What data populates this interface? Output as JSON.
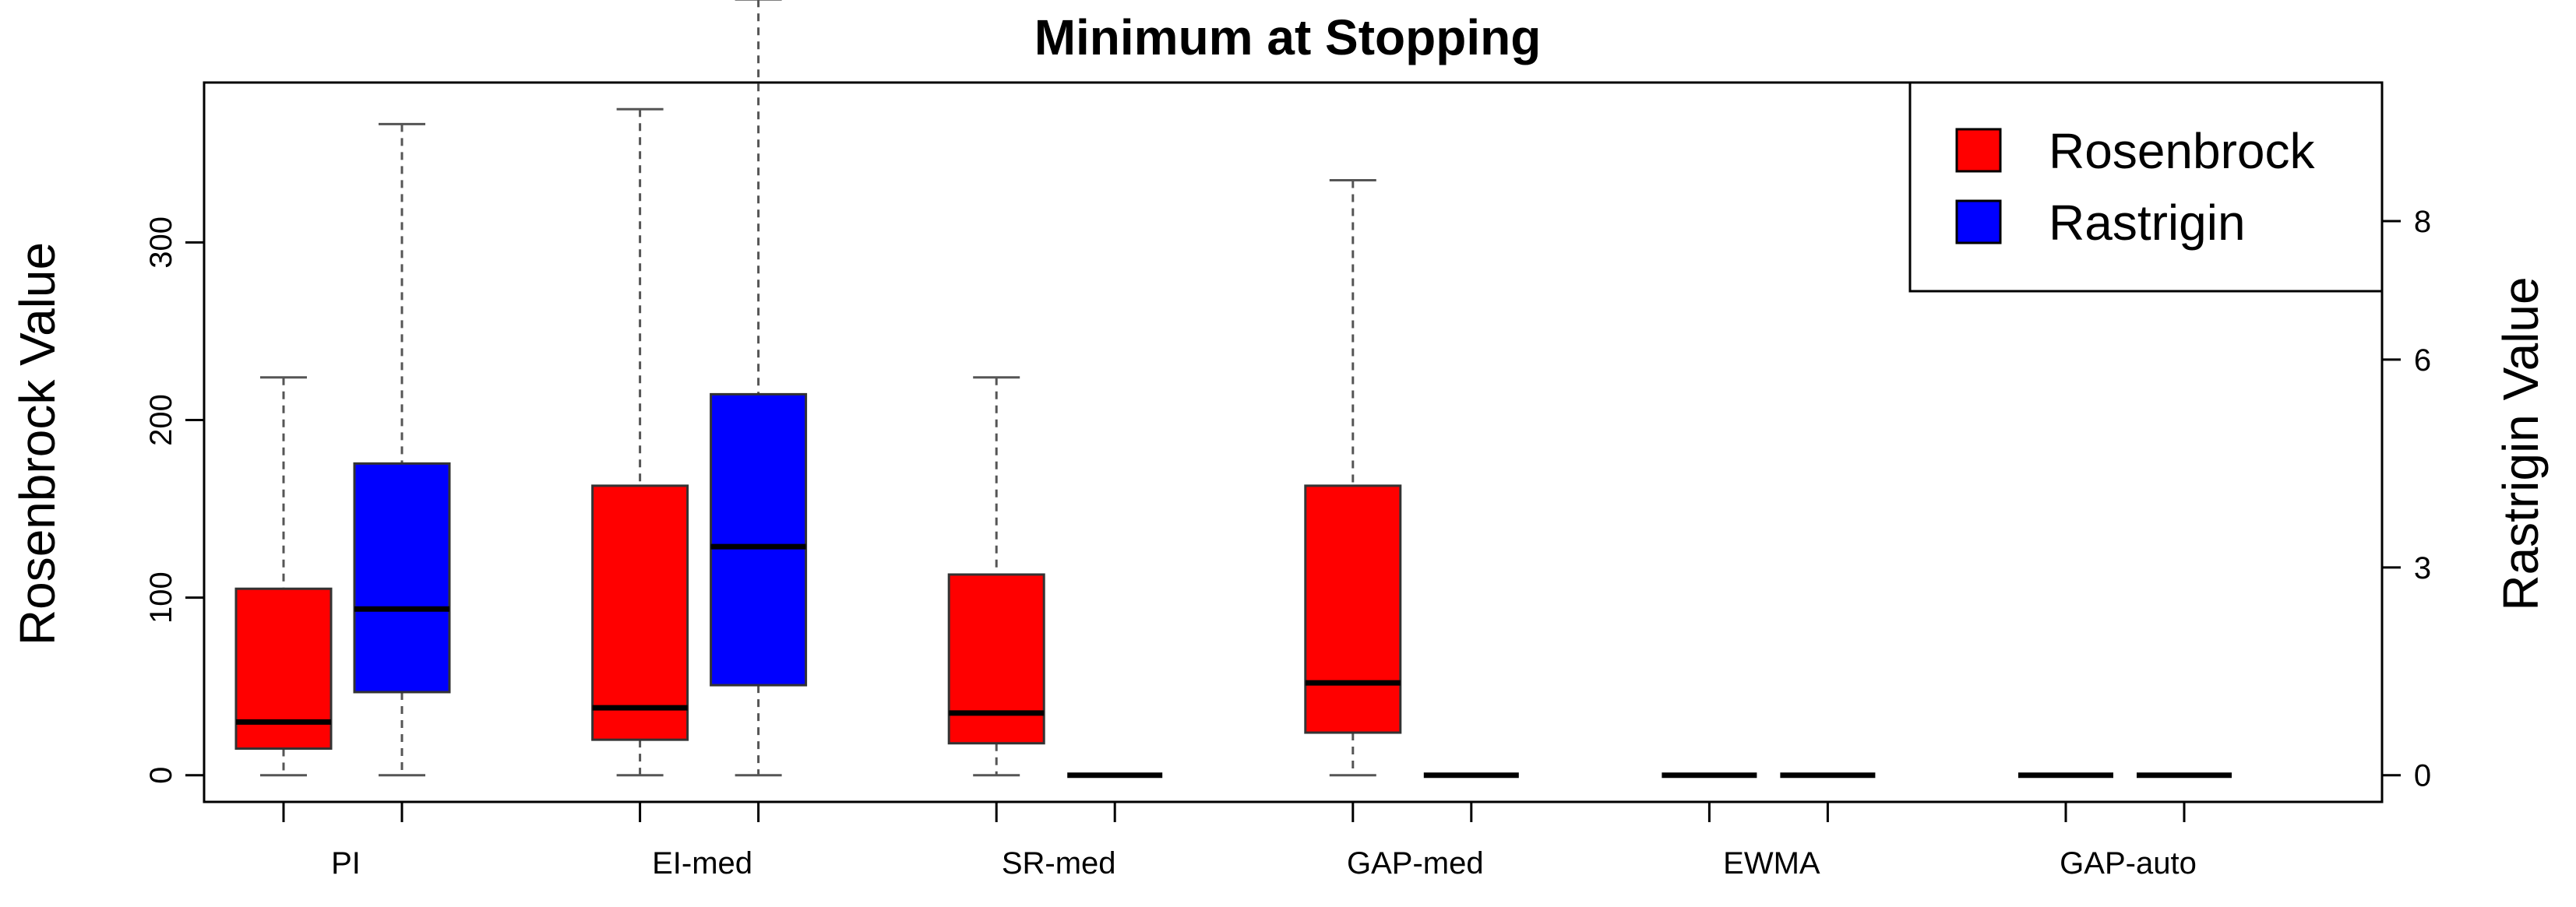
{
  "chart_data": {
    "type": "boxplot",
    "title": "Minimum at Stopping",
    "ylabel_left": "Rosenbrock Value",
    "ylabel_right": "Rastrigin Value",
    "ylim_left": [
      -15,
      390
    ],
    "ylim_right": [
      -0.385,
      10.0
    ],
    "yticks_left": [
      0,
      100,
      200,
      300
    ],
    "yticks_right": [
      0,
      3,
      6,
      8
    ],
    "categories": [
      "PI",
      "EI-med",
      "SR-med",
      "GAP-med",
      "EWMA",
      "GAP-auto"
    ],
    "legend": {
      "position": "top-right",
      "entries": [
        {
          "label": "Rosenbrock",
          "color": "#ff0000"
        },
        {
          "label": "Rastrigin",
          "color": "#0000ff"
        }
      ]
    },
    "series": [
      {
        "name": "Rosenbrock",
        "axis": "left",
        "color": "#ff0000",
        "boxes": [
          {
            "category": "PI",
            "min": 0,
            "q1": 15,
            "median": 30,
            "q3": 105,
            "max": 224
          },
          {
            "category": "EI-med",
            "min": 0,
            "q1": 20,
            "median": 38,
            "q3": 163,
            "max": 375
          },
          {
            "category": "SR-med",
            "min": 0,
            "q1": 18,
            "median": 35,
            "q3": 113,
            "max": 224
          },
          {
            "category": "GAP-med",
            "min": 0,
            "q1": 24,
            "median": 52,
            "q3": 163,
            "max": 335
          },
          {
            "category": "EWMA",
            "min": 0,
            "q1": 0,
            "median": 0,
            "q3": 0,
            "max": 0
          },
          {
            "category": "GAP-auto",
            "min": 0,
            "q1": 0,
            "median": 0,
            "q3": 0,
            "max": 0
          }
        ]
      },
      {
        "name": "Rastrigin",
        "axis": "right",
        "color": "#0000ff",
        "boxes": [
          {
            "category": "PI",
            "min": 0,
            "q1": 1.2,
            "median": 2.4,
            "q3": 4.5,
            "max": 9.4
          },
          {
            "category": "EI-med",
            "min": 0,
            "q1": 1.3,
            "median": 3.3,
            "q3": 5.5,
            "max": 11.2
          },
          {
            "category": "SR-med",
            "min": 0,
            "q1": 0,
            "median": 0,
            "q3": 0,
            "max": 0
          },
          {
            "category": "GAP-med",
            "min": 0,
            "q1": 0,
            "median": 0,
            "q3": 0,
            "max": 0
          },
          {
            "category": "EWMA",
            "min": 0,
            "q1": 0,
            "median": 0,
            "q3": 0,
            "max": 0
          },
          {
            "category": "GAP-auto",
            "min": 0,
            "q1": 0,
            "median": 0,
            "q3": 0,
            "max": 0
          }
        ]
      }
    ]
  }
}
